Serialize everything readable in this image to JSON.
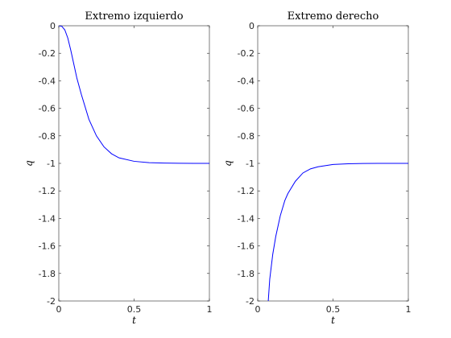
{
  "chart_data": [
    {
      "type": "line",
      "title": "Extremo izquierdo",
      "xlabel": "t",
      "ylabel": "q",
      "xlim": [
        0,
        1
      ],
      "ylim": [
        -2,
        0
      ],
      "xticks": [
        0,
        0.5,
        1
      ],
      "xtick_labels": [
        "0",
        "0.5",
        "1"
      ],
      "yticks": [
        0,
        -0.2,
        -0.4,
        -0.6,
        -0.8,
        -1,
        -1.2,
        -1.4,
        -1.6,
        -1.8,
        -2
      ],
      "ytick_labels": [
        "0",
        "-0.2",
        "-0.4",
        "-0.6",
        "-0.8",
        "-1",
        "-1.2",
        "-1.4",
        "-1.6",
        "-1.8",
        "-2"
      ],
      "grid": false,
      "series": [
        {
          "color": "#0000ff",
          "x": [
            0,
            0.02,
            0.04,
            0.06,
            0.08,
            0.1,
            0.12,
            0.15,
            0.2,
            0.25,
            0.3,
            0.35,
            0.4,
            0.5,
            0.6,
            0.7,
            0.8,
            0.9,
            1.0
          ],
          "y": [
            0,
            -0.004,
            -0.03,
            -0.09,
            -0.18,
            -0.28,
            -0.38,
            -0.5,
            -0.68,
            -0.8,
            -0.88,
            -0.93,
            -0.96,
            -0.985,
            -0.995,
            -0.998,
            -0.999,
            -1.0,
            -1.0
          ]
        }
      ]
    },
    {
      "type": "line",
      "title": "Extremo derecho",
      "xlabel": "t",
      "ylabel": "q",
      "xlim": [
        0,
        1
      ],
      "ylim": [
        -2,
        0
      ],
      "xticks": [
        0,
        0.5,
        1
      ],
      "xtick_labels": [
        "0",
        "0.5",
        "1"
      ],
      "yticks": [
        0,
        -0.2,
        -0.4,
        -0.6,
        -0.8,
        -1,
        -1.2,
        -1.4,
        -1.6,
        -1.8,
        -2
      ],
      "ytick_labels": [
        "0",
        "-0.2",
        "-0.4",
        "-0.6",
        "-0.8",
        "-1",
        "-1.2",
        "-1.4",
        "-1.6",
        "-1.8",
        "-2"
      ],
      "grid": false,
      "series": [
        {
          "color": "#0000ff",
          "x": [
            0.07,
            0.08,
            0.1,
            0.12,
            0.15,
            0.18,
            0.2,
            0.25,
            0.3,
            0.35,
            0.4,
            0.5,
            0.6,
            0.7,
            0.8,
            0.9,
            1.0
          ],
          "y": [
            -2.0,
            -1.84,
            -1.66,
            -1.53,
            -1.38,
            -1.27,
            -1.22,
            -1.13,
            -1.07,
            -1.04,
            -1.025,
            -1.008,
            -1.003,
            -1.001,
            -1.0,
            -1.0,
            -1.0
          ]
        }
      ]
    }
  ]
}
